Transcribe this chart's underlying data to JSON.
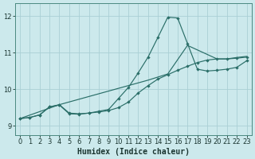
{
  "bg_color": "#cce9ec",
  "grid_color": "#aacfd5",
  "line_color": "#2a6e68",
  "xlabel": "Humidex (Indice chaleur)",
  "xlim": [
    -0.5,
    23.5
  ],
  "ylim": [
    8.75,
    12.35
  ],
  "yticks": [
    9,
    10,
    11,
    12
  ],
  "xticks": [
    0,
    1,
    2,
    3,
    4,
    5,
    6,
    7,
    8,
    9,
    10,
    11,
    12,
    13,
    14,
    15,
    16,
    17,
    18,
    19,
    20,
    21,
    22,
    23
  ],
  "line1_x": [
    0,
    1,
    2,
    3,
    4,
    5,
    6,
    7,
    8,
    9,
    10,
    11,
    12,
    13,
    14,
    15,
    16,
    17,
    18,
    19,
    20,
    21,
    22,
    23
  ],
  "line1_y": [
    9.2,
    9.23,
    9.3,
    9.52,
    9.57,
    9.33,
    9.32,
    9.35,
    9.38,
    9.42,
    9.5,
    9.65,
    9.9,
    10.1,
    10.28,
    10.4,
    10.52,
    10.63,
    10.73,
    10.8,
    10.83,
    10.83,
    10.85,
    10.88
  ],
  "line2_x": [
    0,
    1,
    2,
    3,
    4,
    5,
    6,
    7,
    8,
    9,
    10,
    11,
    12,
    13,
    14,
    15,
    16,
    17,
    18,
    19,
    20,
    21,
    22,
    23
  ],
  "line2_y": [
    9.2,
    9.23,
    9.3,
    9.52,
    9.58,
    9.35,
    9.33,
    9.35,
    9.4,
    9.45,
    9.75,
    10.05,
    10.45,
    10.88,
    11.42,
    11.97,
    11.95,
    11.25,
    10.55,
    10.5,
    10.52,
    10.55,
    10.6,
    10.78
  ],
  "line3_x": [
    0,
    4,
    13,
    15,
    17,
    20,
    21,
    22,
    23
  ],
  "line3_y": [
    9.2,
    9.58,
    10.25,
    10.42,
    11.2,
    10.83,
    10.83,
    10.87,
    10.9
  ]
}
